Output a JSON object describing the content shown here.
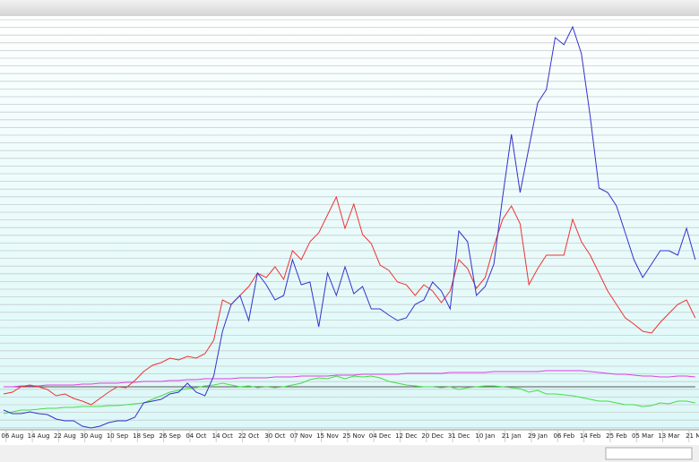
{
  "chart_data": {
    "type": "line",
    "categories": [
      null,
      "06 Aug",
      null,
      null,
      "14 Aug",
      null,
      null,
      "22 Aug",
      null,
      null,
      "30 Aug",
      null,
      null,
      "10 Sep",
      null,
      null,
      "18 Sep",
      null,
      null,
      "26 Sep",
      null,
      null,
      "04 Oct",
      null,
      null,
      "14 Oct",
      null,
      null,
      "22 Oct",
      null,
      null,
      "30 Oct",
      null,
      null,
      "07 Nov",
      null,
      null,
      "15 Nov",
      null,
      null,
      "25 Nov",
      null,
      null,
      "04 Dec",
      null,
      null,
      "12 Dec",
      null,
      null,
      "20 Dec",
      null,
      null,
      "31 Dec",
      null,
      null,
      "10 Jan",
      null,
      null,
      "21 Jan",
      null,
      null,
      "29 Jan",
      null,
      null,
      "06 Feb",
      null,
      null,
      "14 Feb",
      null,
      null,
      "25 Feb",
      null,
      null,
      "05 Mar",
      null,
      null,
      "13 Mar",
      null,
      null,
      "21 Ma"
    ],
    "series": [
      {
        "color": "#555555",
        "values": [
          46,
          46,
          46,
          46,
          46,
          46,
          46,
          46,
          46,
          46,
          46,
          46,
          46,
          46,
          46,
          46,
          46,
          46,
          46,
          46,
          46,
          46,
          46,
          46,
          46,
          46,
          46,
          46,
          46,
          46,
          46,
          46,
          46,
          46,
          46,
          46,
          46,
          46,
          46,
          46,
          46,
          46,
          46,
          46,
          46,
          46,
          46,
          46,
          46,
          46,
          46,
          46,
          46,
          46,
          46,
          46,
          46,
          46,
          46,
          46,
          46,
          46,
          46,
          46,
          46,
          46,
          46,
          46,
          46,
          46,
          46,
          46,
          46,
          46,
          46,
          46,
          46,
          46,
          46,
          46
        ]
      },
      {
        "color": "#e040e0",
        "values": [
          46,
          46,
          47,
          47,
          47,
          48,
          48,
          48,
          48,
          49,
          49,
          50,
          50,
          50,
          51,
          51,
          52,
          52,
          52,
          53,
          53,
          54,
          54,
          55,
          55,
          55,
          55,
          56,
          56,
          56,
          56,
          57,
          57,
          57,
          58,
          58,
          58,
          58,
          59,
          59,
          59,
          60,
          60,
          60,
          60,
          60,
          61,
          61,
          61,
          61,
          61,
          62,
          62,
          62,
          62,
          62,
          63,
          63,
          63,
          63,
          63,
          63,
          64,
          64,
          64,
          64,
          64,
          63,
          62,
          61,
          60,
          60,
          59,
          58,
          58,
          57,
          57,
          58,
          58,
          57
        ]
      },
      {
        "color": "#44dd44",
        "values": [
          16,
          18,
          20,
          20,
          21,
          22,
          22,
          23,
          23,
          24,
          24,
          24,
          25,
          25,
          26,
          27,
          28,
          32,
          36,
          40,
          42,
          44,
          45,
          47,
          48,
          50,
          48,
          46,
          47,
          45,
          46,
          45,
          46,
          48,
          50,
          54,
          56,
          55,
          58,
          55,
          58,
          57,
          58,
          56,
          52,
          50,
          48,
          47,
          46,
          46,
          45,
          46,
          43,
          45,
          46,
          47,
          47,
          46,
          45,
          44,
          40,
          42,
          38,
          38,
          37,
          36,
          34,
          32,
          30,
          30,
          28,
          26,
          26,
          24,
          25,
          28,
          27,
          30,
          30,
          28
        ]
      },
      {
        "color": "#ee3333",
        "values": [
          38,
          40,
          46,
          48,
          46,
          43,
          36,
          38,
          33,
          30,
          26,
          33,
          40,
          46,
          45,
          53,
          63,
          70,
          73,
          78,
          76,
          80,
          78,
          83,
          98,
          143,
          138,
          148,
          158,
          173,
          168,
          180,
          166,
          198,
          188,
          208,
          218,
          238,
          258,
          223,
          250,
          216,
          206,
          182,
          176,
          163,
          160,
          148,
          160,
          153,
          140,
          153,
          188,
          178,
          156,
          168,
          203,
          233,
          248,
          228,
          160,
          178,
          193,
          193,
          193,
          233,
          208,
          193,
          173,
          153,
          138,
          123,
          116,
          108,
          106,
          118,
          128,
          138,
          143,
          123
        ]
      },
      {
        "color": "#3333cc",
        "values": [
          20,
          16,
          16,
          18,
          16,
          15,
          10,
          8,
          8,
          2,
          0,
          2,
          6,
          8,
          8,
          12,
          28,
          30,
          32,
          38,
          40,
          50,
          40,
          36,
          58,
          108,
          138,
          148,
          120,
          173,
          160,
          143,
          148,
          188,
          160,
          163,
          113,
          173,
          148,
          180,
          150,
          158,
          133,
          133,
          126,
          120,
          123,
          138,
          143,
          163,
          153,
          133,
          220,
          208,
          148,
          158,
          183,
          258,
          328,
          263,
          313,
          363,
          378,
          436,
          428,
          448,
          418,
          348,
          268,
          263,
          248,
          218,
          188,
          168,
          183,
          198,
          198,
          193,
          223,
          188
        ]
      }
    ],
    "ylim": [
      0,
      460
    ],
    "grid": true
  }
}
